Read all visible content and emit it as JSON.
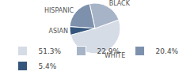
{
  "chart_data": {
    "type": "pie",
    "categories": [
      "WHITE",
      "BLACK",
      "HISPANIC",
      "ASIAN"
    ],
    "values": [
      51.3,
      22.9,
      20.4,
      5.4
    ],
    "value_labels": [
      "51.3%",
      "22.9%",
      "20.4%",
      "5.4%"
    ],
    "colors": [
      "#d5dce6",
      "#a7b4c7",
      "#7d91ad",
      "#34567c"
    ],
    "legend": "bottom"
  }
}
